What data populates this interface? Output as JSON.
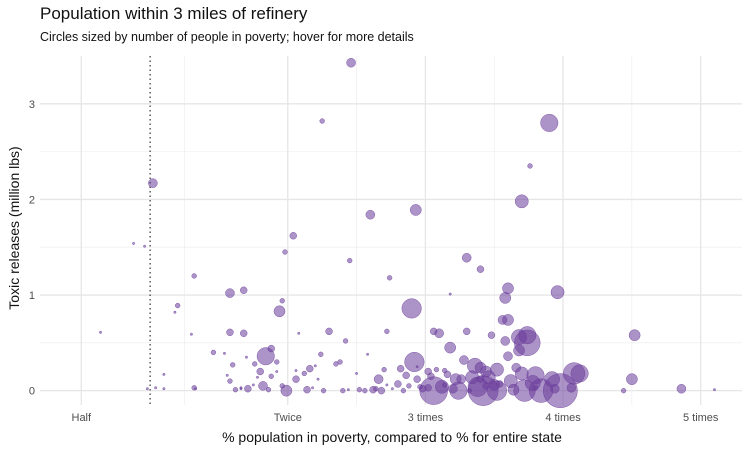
{
  "header": {
    "title": "Population within 3 miles of refinery",
    "subtitle": "Circles sized by number of people in poverty; hover for more details"
  },
  "chart_data": {
    "type": "scatter",
    "title": "Population within 3 miles of refinery",
    "subtitle": "Circles sized by number of people in poverty; hover for more details",
    "xlabel": "% population in poverty, compared to % for entire state",
    "ylabel": "Toxic releases (million lbs)",
    "x_ticks": [
      {
        "value": 0.5,
        "label": "Half"
      },
      {
        "value": 2,
        "label": "Twice"
      },
      {
        "value": 3,
        "label": "3 times"
      },
      {
        "value": 4,
        "label": "4 times"
      },
      {
        "value": 5,
        "label": "5 times"
      }
    ],
    "y_ticks": [
      {
        "value": 0,
        "label": "0"
      },
      {
        "value": 1,
        "label": "1"
      },
      {
        "value": 2,
        "label": "2"
      },
      {
        "value": 3,
        "label": "3"
      }
    ],
    "xlim": [
      0.2,
      5.3
    ],
    "ylim": [
      -0.15,
      3.5
    ],
    "reference_line": {
      "x": 1,
      "style": "dotted"
    },
    "grid": true,
    "point_color": "#6a3d9a",
    "points": [
      [
        0.64,
        0.61,
        1
      ],
      [
        0.88,
        1.54,
        1
      ],
      [
        0.96,
        1.51,
        1
      ],
      [
        0.98,
        0.02,
        1
      ],
      [
        1.02,
        2.17,
        4
      ],
      [
        1.04,
        0.03,
        1
      ],
      [
        1.1,
        0.17,
        1
      ],
      [
        1.1,
        0.02,
        1
      ],
      [
        1.18,
        0.82,
        1
      ],
      [
        1.2,
        0.89,
        2
      ],
      [
        1.3,
        0.59,
        1
      ],
      [
        1.32,
        1.2,
        2
      ],
      [
        1.32,
        0.03,
        2
      ],
      [
        1.33,
        0.02,
        1
      ],
      [
        1.46,
        0.4,
        2
      ],
      [
        1.54,
        0.39,
        1
      ],
      [
        1.56,
        0.16,
        1
      ],
      [
        1.58,
        1.02,
        4
      ],
      [
        1.58,
        0.61,
        3
      ],
      [
        1.58,
        0.1,
        2
      ],
      [
        1.6,
        0.27,
        2
      ],
      [
        1.62,
        0.01,
        2
      ],
      [
        1.66,
        0.03,
        1
      ],
      [
        1.66,
        0.02,
        1
      ],
      [
        1.68,
        1.05,
        3
      ],
      [
        1.68,
        0.6,
        3
      ],
      [
        1.7,
        0.35,
        1
      ],
      [
        1.71,
        0.02,
        3
      ],
      [
        1.75,
        0.06,
        1
      ],
      [
        1.76,
        0.28,
        2
      ],
      [
        1.78,
        0.14,
        1
      ],
      [
        1.8,
        0.2,
        3
      ],
      [
        1.82,
        0.05,
        4
      ],
      [
        1.84,
        0.36,
        8
      ],
      [
        1.86,
        0.01,
        2
      ],
      [
        1.88,
        0.15,
        2
      ],
      [
        1.88,
        0.44,
        3
      ],
      [
        1.92,
        0.3,
        2
      ],
      [
        1.92,
        0.2,
        1
      ],
      [
        1.94,
        0.83,
        5
      ],
      [
        1.96,
        0.94,
        2
      ],
      [
        1.96,
        0.05,
        2
      ],
      [
        1.98,
        1.45,
        2
      ],
      [
        1.99,
        0.0,
        5
      ],
      [
        2.04,
        1.62,
        3
      ],
      [
        2.06,
        0.21,
        1
      ],
      [
        2.06,
        0.12,
        3
      ],
      [
        2.08,
        0.6,
        1
      ],
      [
        2.12,
        0.18,
        2
      ],
      [
        2.14,
        0.01,
        3
      ],
      [
        2.16,
        0.23,
        3
      ],
      [
        2.18,
        0.03,
        1
      ],
      [
        2.2,
        0.26,
        1
      ],
      [
        2.22,
        0.12,
        1
      ],
      [
        2.24,
        0.38,
        2
      ],
      [
        2.25,
        2.82,
        2
      ],
      [
        2.26,
        0.0,
        2
      ],
      [
        2.3,
        0.62,
        3
      ],
      [
        2.35,
        0.28,
        2
      ],
      [
        2.38,
        0.3,
        2
      ],
      [
        2.4,
        0.0,
        2
      ],
      [
        2.42,
        0.52,
        2
      ],
      [
        2.44,
        0.01,
        1
      ],
      [
        2.45,
        1.36,
        2
      ],
      [
        2.46,
        3.43,
        4
      ],
      [
        2.5,
        0.18,
        1
      ],
      [
        2.52,
        0.01,
        2
      ],
      [
        2.56,
        0.0,
        2
      ],
      [
        2.58,
        0.38,
        1
      ],
      [
        2.6,
        1.84,
        4
      ],
      [
        2.62,
        0.01,
        3
      ],
      [
        2.64,
        0.02,
        2
      ],
      [
        2.66,
        0.12,
        4
      ],
      [
        2.68,
        0.0,
        3
      ],
      [
        2.7,
        0.22,
        2
      ],
      [
        2.72,
        0.62,
        2
      ],
      [
        2.72,
        0.06,
        1
      ],
      [
        2.74,
        1.18,
        2
      ],
      [
        2.76,
        0.02,
        1
      ],
      [
        2.8,
        0.07,
        3
      ],
      [
        2.82,
        0.23,
        3
      ],
      [
        2.84,
        0.0,
        2
      ],
      [
        2.86,
        0.16,
        3
      ],
      [
        2.88,
        0.05,
        2
      ],
      [
        2.9,
        0.86,
        9
      ],
      [
        2.92,
        0.3,
        9
      ],
      [
        2.93,
        1.89,
        5
      ],
      [
        2.94,
        0.25,
        1
      ],
      [
        2.94,
        0.12,
        3
      ],
      [
        2.96,
        0.04,
        2
      ],
      [
        2.98,
        0.02,
        3
      ],
      [
        3.02,
        0.2,
        3
      ],
      [
        3.02,
        0.03,
        3
      ],
      [
        3.04,
        0.15,
        3
      ],
      [
        3.06,
        0.62,
        3
      ],
      [
        3.06,
        0.0,
        13
      ],
      [
        3.08,
        0.22,
        2
      ],
      [
        3.1,
        0.6,
        4
      ],
      [
        3.12,
        0.04,
        6
      ],
      [
        3.14,
        0.21,
        2
      ],
      [
        3.14,
        0.06,
        2
      ],
      [
        3.16,
        0.17,
        3
      ],
      [
        3.18,
        0.45,
        5
      ],
      [
        3.18,
        1.01,
        1
      ],
      [
        3.2,
        0.02,
        4
      ],
      [
        3.22,
        0.12,
        5
      ],
      [
        3.24,
        0.0,
        8
      ],
      [
        3.26,
        0.12,
        4
      ],
      [
        3.28,
        0.32,
        4
      ],
      [
        3.3,
        0.62,
        3
      ],
      [
        3.3,
        1.39,
        4
      ],
      [
        3.32,
        0.0,
        2
      ],
      [
        3.34,
        0.14,
        6
      ],
      [
        3.36,
        0.26,
        7
      ],
      [
        3.38,
        0.04,
        9
      ],
      [
        3.4,
        1.27,
        3
      ],
      [
        3.4,
        0.12,
        3
      ],
      [
        3.4,
        0.24,
        5
      ],
      [
        3.42,
        0.0,
        14
      ],
      [
        3.44,
        0.05,
        3
      ],
      [
        3.44,
        0.2,
        5
      ],
      [
        3.46,
        0.14,
        6
      ],
      [
        3.48,
        0.58,
        3
      ],
      [
        3.5,
        0.06,
        5
      ],
      [
        3.52,
        0.22,
        6
      ],
      [
        3.52,
        0.0,
        9
      ],
      [
        3.54,
        0.07,
        3
      ],
      [
        3.56,
        0.74,
        4
      ],
      [
        3.58,
        0.97,
        5
      ],
      [
        3.58,
        0.52,
        4
      ],
      [
        3.6,
        1.07,
        5
      ],
      [
        3.6,
        0.74,
        5
      ],
      [
        3.6,
        0.36,
        4
      ],
      [
        3.62,
        0.1,
        6
      ],
      [
        3.64,
        0.01,
        5
      ],
      [
        3.66,
        0.24,
        4
      ],
      [
        3.68,
        0.42,
        5
      ],
      [
        3.68,
        0.56,
        7
      ],
      [
        3.7,
        0.18,
        6
      ],
      [
        3.7,
        1.98,
        6
      ],
      [
        3.72,
        0.0,
        10
      ],
      [
        3.74,
        0.5,
        12
      ],
      [
        3.74,
        0.58,
        8
      ],
      [
        3.76,
        2.35,
        2
      ],
      [
        3.78,
        0.08,
        7
      ],
      [
        3.8,
        0.16,
        8
      ],
      [
        3.8,
        0.03,
        2
      ],
      [
        3.84,
        0.0,
        11
      ],
      [
        3.9,
        2.8,
        8
      ],
      [
        3.92,
        0.12,
        7
      ],
      [
        3.94,
        0.02,
        4
      ],
      [
        3.96,
        1.03,
        6
      ],
      [
        3.98,
        0.0,
        16
      ],
      [
        4.06,
        0.03,
        4
      ],
      [
        4.08,
        0.18,
        10
      ],
      [
        4.12,
        0.18,
        8
      ],
      [
        4.44,
        0.0,
        2
      ],
      [
        4.5,
        0.12,
        5
      ],
      [
        4.52,
        0.58,
        5
      ],
      [
        4.86,
        0.02,
        4
      ],
      [
        5.1,
        0.01,
        1
      ]
    ]
  }
}
